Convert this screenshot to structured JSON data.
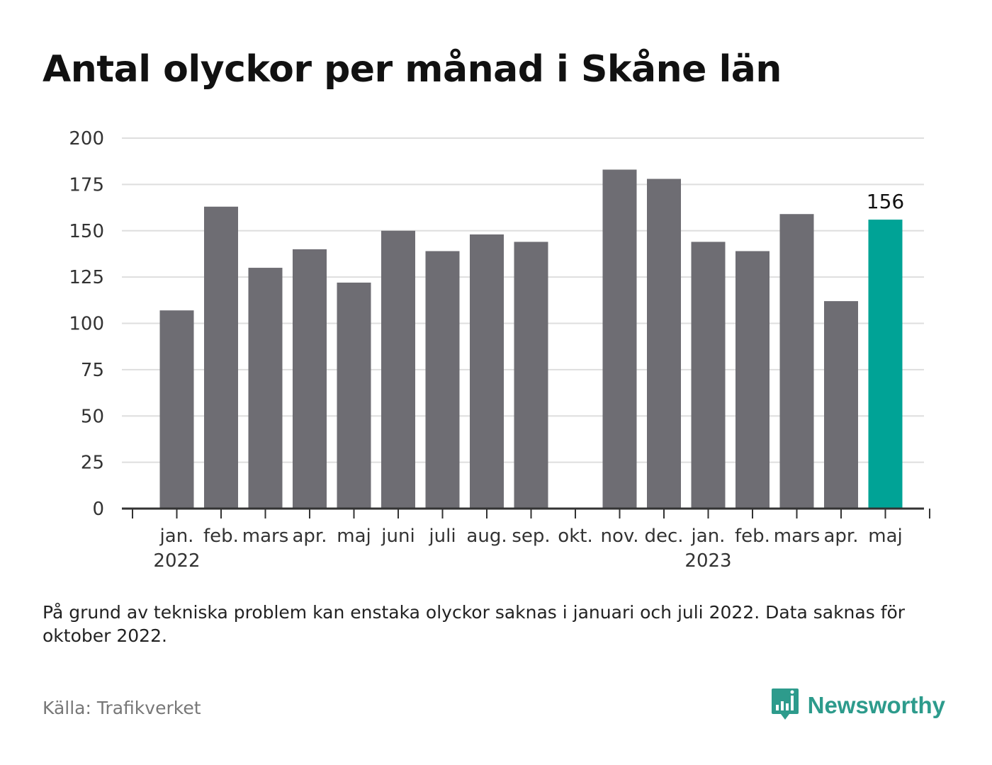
{
  "title": "Antal olyckor per månad i Skåne län",
  "note": "På grund av tekniska problem kan enstaka olyckor saknas i januari och juli 2022. Data saknas för oktober 2022.",
  "source": "Källa: Trafikverket",
  "brand": {
    "name": "Newsworthy",
    "icon": "bar-chart-speech-bubble-icon",
    "color": "#2d9b8c"
  },
  "colors": {
    "bar": "#6e6d73",
    "highlight": "#00a396",
    "grid": "#dedede",
    "axis": "#333333",
    "text": "#333333"
  },
  "chart_data": {
    "type": "bar",
    "categories": [
      "jan.",
      "feb.",
      "mars",
      "apr.",
      "maj",
      "juni",
      "juli",
      "aug.",
      "sep.",
      "okt.",
      "nov.",
      "dec.",
      "jan.",
      "feb.",
      "mars",
      "apr.",
      "maj"
    ],
    "year_labels": [
      {
        "category_index": 0,
        "label": "2022"
      },
      {
        "category_index": 12,
        "label": "2023"
      }
    ],
    "values": [
      107,
      163,
      130,
      140,
      122,
      150,
      139,
      148,
      144,
      null,
      183,
      178,
      144,
      139,
      159,
      112,
      156
    ],
    "highlight_index": 16,
    "data_labels": [
      {
        "category_index": 16,
        "label": "156"
      }
    ],
    "yticks": [
      0,
      25,
      50,
      75,
      100,
      125,
      150,
      175,
      200
    ],
    "ylim": [
      0,
      200
    ],
    "grid": true,
    "legend": "none",
    "xlabel": "",
    "ylabel": ""
  }
}
